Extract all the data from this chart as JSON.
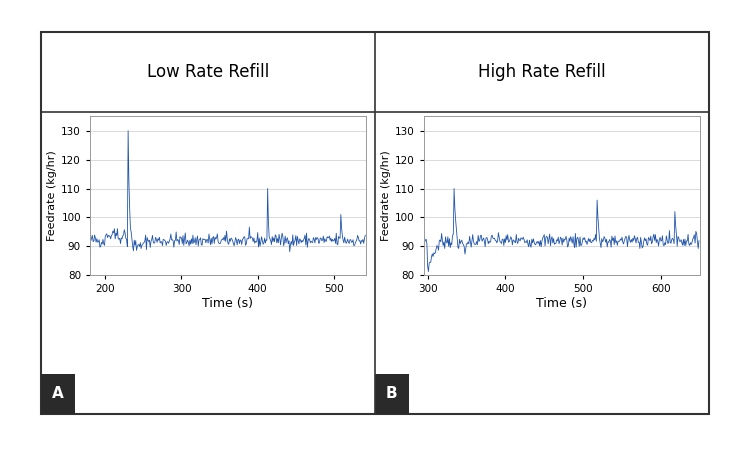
{
  "title_A": "Low Rate Refill",
  "title_B": "High Rate Refill",
  "xlabel": "Time (s)",
  "ylabel": "Feedrate (kg/hr)",
  "label_A": "A",
  "label_B": "B",
  "ylim": [
    80,
    135
  ],
  "yticks": [
    80,
    90,
    100,
    110,
    120,
    130
  ],
  "xlim_A": [
    180,
    542
  ],
  "xticks_A": [
    200,
    300,
    400,
    500
  ],
  "xlim_B": [
    295,
    650
  ],
  "xticks_B": [
    300,
    400,
    500,
    600
  ],
  "baseline": 92,
  "noise_std": 1.2,
  "line_color": "#2255aa",
  "line_width": 0.6,
  "background_color": "#ffffff",
  "outer_box_color": "#555555",
  "seed_A": 42,
  "seed_B": 7
}
